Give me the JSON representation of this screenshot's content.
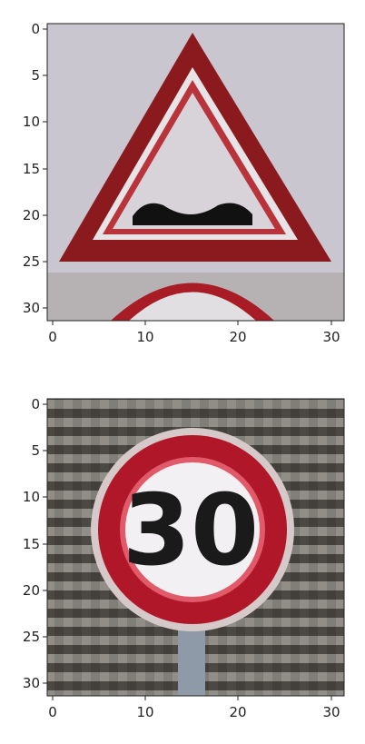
{
  "panels": [
    {
      "subject": "road-sign-uneven-road-warning",
      "x_ticks": [
        "0",
        "10",
        "20",
        "30"
      ],
      "y_ticks": [
        "0",
        "5",
        "10",
        "15",
        "20",
        "25",
        "30"
      ],
      "colors": {
        "sign_red": "#8b1a1f",
        "sign_inner": "#d7d3d8",
        "background": "#c9c6cf",
        "bump_black": "#111111"
      }
    },
    {
      "subject": "road-sign-speed-limit-30",
      "sign_text": "30",
      "x_ticks": [
        "0",
        "10",
        "20",
        "30"
      ],
      "y_ticks": [
        "0",
        "5",
        "10",
        "15",
        "20",
        "25",
        "30"
      ],
      "colors": {
        "sign_red": "#b0182a",
        "sign_inner": "#f2f0f2",
        "background": "#6b6660",
        "digit_black": "#1a1a1a"
      }
    }
  ]
}
